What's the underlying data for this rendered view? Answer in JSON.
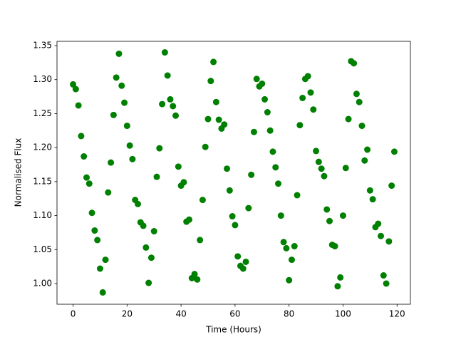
{
  "chart_data": {
    "type": "scatter",
    "xlabel": "Time (Hours)",
    "ylabel": "Normalised Flux",
    "color": "#008000",
    "x": [
      0,
      1,
      2,
      3,
      4,
      5,
      6,
      7,
      8,
      9,
      10,
      11,
      12,
      13,
      14,
      15,
      16,
      17,
      18,
      19,
      20,
      21,
      22,
      23,
      24,
      25,
      26,
      27,
      28,
      29,
      30,
      31,
      32,
      33,
      34,
      35,
      36,
      37,
      38,
      39,
      40,
      41,
      42,
      43,
      44,
      45,
      46,
      47,
      48,
      49,
      50,
      51,
      52,
      53,
      54,
      55,
      56,
      57,
      58,
      59,
      60,
      61,
      62,
      63,
      64,
      65,
      66,
      67,
      68,
      69,
      70,
      71,
      72,
      73,
      74,
      75,
      76,
      77,
      78,
      79,
      80,
      81,
      82,
      83,
      84,
      85,
      86,
      87,
      88,
      89,
      90,
      91,
      92,
      93,
      94,
      95,
      96,
      97,
      98,
      99,
      100,
      101,
      102,
      103,
      104,
      105,
      106,
      107,
      108,
      109,
      110,
      111,
      112,
      113,
      114,
      115,
      116,
      117,
      118,
      119
    ],
    "values": [
      1.293,
      1.286,
      1.262,
      1.217,
      1.187,
      1.156,
      1.147,
      1.104,
      1.078,
      1.064,
      1.022,
      0.987,
      1.035,
      1.134,
      1.178,
      1.248,
      1.303,
      1.338,
      1.291,
      1.266,
      1.232,
      1.203,
      1.183,
      1.123,
      1.117,
      1.09,
      1.085,
      1.053,
      1.001,
      1.038,
      1.077,
      1.157,
      1.199,
      1.264,
      1.34,
      1.306,
      1.271,
      1.261,
      1.247,
      1.172,
      1.144,
      1.149,
      1.091,
      1.094,
      1.008,
      1.014,
      1.006,
      1.064,
      1.123,
      1.201,
      1.242,
      1.298,
      1.326,
      1.267,
      1.241,
      1.228,
      1.234,
      1.169,
      1.137,
      1.099,
      1.086,
      1.04,
      1.026,
      1.022,
      1.032,
      1.111,
      1.16,
      1.223,
      1.301,
      1.29,
      1.294,
      1.271,
      1.252,
      1.225,
      1.194,
      1.171,
      1.147,
      1.1,
      1.061,
      1.052,
      1.005,
      1.035,
      1.055,
      1.13,
      1.233,
      1.273,
      1.301,
      1.305,
      1.281,
      1.256,
      1.195,
      1.179,
      1.169,
      1.158,
      1.109,
      1.092,
      1.057,
      1.055,
      0.996,
      1.009,
      1.1,
      1.17,
      1.242,
      1.327,
      1.324,
      1.279,
      1.267,
      1.232,
      1.181,
      1.197,
      1.137,
      1.124,
      1.083,
      1.088,
      1.07,
      1.012,
      1.0,
      1.062,
      1.144,
      1.194
    ],
    "xlim": [
      -5.95,
      124.95
    ],
    "xticks": [
      0,
      20,
      40,
      60,
      80,
      100,
      120
    ],
    "ylim": [
      0.9696,
      1.3563
    ],
    "yticks": [
      {
        "value": 1.0,
        "label": "1.00"
      },
      {
        "value": 1.05,
        "label": "1.05"
      },
      {
        "value": 1.1,
        "label": "1.10"
      },
      {
        "value": 1.15,
        "label": "1.15"
      },
      {
        "value": 1.2,
        "label": "1.20"
      },
      {
        "value": 1.25,
        "label": "1.25"
      },
      {
        "value": 1.3,
        "label": "1.30"
      },
      {
        "value": 1.35,
        "label": "1.35"
      }
    ],
    "grid": false
  }
}
